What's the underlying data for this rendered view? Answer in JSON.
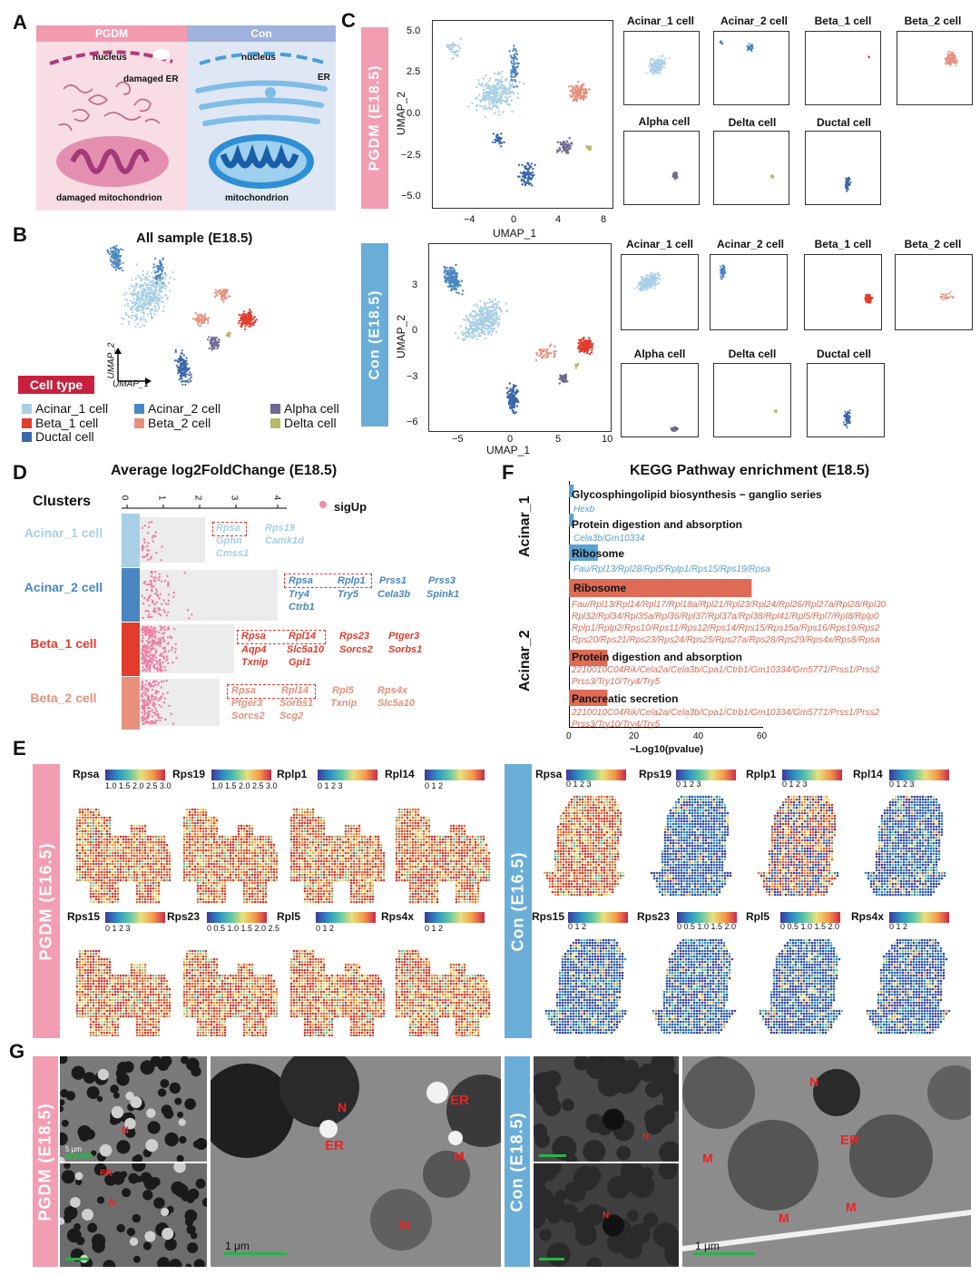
{
  "panels": {
    "A": "A",
    "B": "B",
    "C": "C",
    "D": "D",
    "E": "E",
    "F": "F",
    "G": "G"
  },
  "panelA": {
    "left_header": "PGDM",
    "right_header": "Con",
    "left_nucleus": "nucleus",
    "left_er": "damaged ER",
    "left_mito": "damaged mitochondrion",
    "right_nucleus": "nucleus",
    "right_er": "ER",
    "right_mito": "mitochondrion",
    "colors": {
      "pgdm": "#f4a3b5",
      "con": "#a9bde3"
    }
  },
  "panelB": {
    "title": "All sample (E18.5)",
    "axis_y": "UMAP_2",
    "axis_x": "UMAP_1",
    "legend_title": "Cell type",
    "legend": [
      {
        "label": "Acinar_1 cell",
        "color": "#a8cfe6"
      },
      {
        "label": "Acinar_2 cell",
        "color": "#4a86c1"
      },
      {
        "label": "Alpha cell",
        "color": "#6e6a92"
      },
      {
        "label": "Beta_1 cell",
        "color": "#e23c2c"
      },
      {
        "label": "Beta_2 cell",
        "color": "#e8907c"
      },
      {
        "label": "Delta cell",
        "color": "#b6b96a"
      },
      {
        "label": "Ductal cell",
        "color": "#3a66aa"
      }
    ]
  },
  "panelC": {
    "pgdm_band": "PGDM (E18.5)",
    "con_band": "Con (E18.5)",
    "xlabel": "UMAP_1",
    "ylabel": "UMAP_2",
    "pgdm_xticks": [
      "−4",
      "0",
      "4",
      "8"
    ],
    "pgdm_yticks": [
      "5.0",
      "2.5",
      "0.0",
      "−2.5",
      "−5.0"
    ],
    "con_xticks": [
      "−5",
      "0",
      "5",
      "10"
    ],
    "con_yticks": [
      "3",
      "0",
      "−3",
      "−6"
    ],
    "small_titles_top": [
      "Acinar_1 cell",
      "Acinar_2 cell",
      "Beta_1 cell",
      "Beta_2 cell"
    ],
    "small_titles_bottom": [
      "Alpha cell",
      "Delta cell",
      "Ductal cell"
    ]
  },
  "panelD": {
    "title": "Average log2FoldChange (E18.5)",
    "clusters_label": "Clusters",
    "ticks": [
      "0",
      "1",
      "2",
      "3",
      "4"
    ],
    "legend": "sigUp",
    "clusters": [
      {
        "name": "Acinar_1 cell",
        "color": "#a8cfe6",
        "genes": [
          "Rpsa",
          "Rps19",
          "Gphn",
          "Camk1d",
          "Cmss1"
        ]
      },
      {
        "name": "Acinar_2 cell",
        "color": "#4a86c1",
        "genes": [
          "Rpsa",
          "Rplp1",
          "Prss1",
          "Prss3",
          "Try4",
          "Try5",
          "Cela3b",
          "Spink1",
          "Ctrb1"
        ]
      },
      {
        "name": "Beta_1 cell",
        "color": "#e23c2c",
        "genes": [
          "Rpsa",
          "Rpl14",
          "Rps23",
          "Ptger3",
          "Aqp4",
          "Slc5a10",
          "Sorcs2",
          "Sorbs1",
          "Txnip",
          "Gpi1"
        ]
      },
      {
        "name": "Beta_2 cell",
        "color": "#e8907c",
        "genes": [
          "Rpsa",
          "Rpl14",
          "Rpl5",
          "Rps4x",
          "Ptger3",
          "Sorbs1",
          "Txnip",
          "Slc5a10",
          "Sorcs2",
          "Scg2"
        ]
      }
    ]
  },
  "panelF": {
    "title": "KEGG Pathway enrichment (E18.5)",
    "group1": "Acinar_1",
    "group2": "Acinar_2",
    "xlabel": "−Log10(pvalue)",
    "xticks": [
      "0",
      "20",
      "40",
      "60"
    ],
    "chart_data": {
      "type": "bar",
      "categories": [
        "Glycosphingolipid biosynthesis − ganglio series",
        "Protein digestion and absorption",
        "Ribosome",
        "Ribosome",
        "Protein digestion and absorption",
        "Pancreatic secretion"
      ],
      "values": [
        1.5,
        1.5,
        9,
        57,
        12,
        12
      ],
      "xlabel": "−Log10(pvalue)",
      "xlim": [
        0,
        60
      ]
    },
    "genes": [
      "Hexb",
      "Cela3b/Gm10334",
      "Fau/Rpl13/Rpl28/Rpl5/Rplp1/Rps15/Rps19/Rpsa",
      "Fau/Rpl13/Rpl14/Rpl17/Rpl18a/Rpl21/Rpl23/Rpl24/Rpl26/Rpl27a/Rpl28/Rpl30",
      "Rpl32/Rpl34/Rpl35a/Rpl36/Rpl37/Rpl37a/Rpl38/Rpl41/Rpl5/Rpl7/Rpl8/Rplp0",
      "Rplp1/Rplp2/Rps10/Rps11/Rps12/Rps14/Rps15/Rps15a/Rps16/Rps19/Rps2",
      "Rps20/Rps21/Rps23/Rps24/Rps25/Rps27a/Rps28/Rps29/Rps4x/Rps8/Rpsa",
      "2210010C04Rik/Cela2a/Cela3b/Cpa1/Ctrb1/Gm10334/Gm5771/Prss1/Prss2",
      "Prss3/Try10/Try4/Try5",
      "2210010C04Rik/Cela2a/Cela3b/Cpa1/Ctrb1/Gm10334/Gm5771/Prss1/Prss2",
      "Prss3/Try10/Try4/Try5"
    ],
    "colors": {
      "acinar1": "#5ba0cf",
      "acinar2": "#de6b55"
    }
  },
  "panelE": {
    "pgdm_band": "PGDM (E16.5)",
    "con_band": "Con (E16.5)",
    "pgdm_top": [
      {
        "gene": "Rpsa",
        "ticks": "1.0 1.5 2.0 2.5 3.0"
      },
      {
        "gene": "Rps19",
        "ticks": "1.0 1.5 2.0 2.5 3.0"
      },
      {
        "gene": "Rplp1",
        "ticks": "0  1  2  3"
      },
      {
        "gene": "Rpl14",
        "ticks": "0  1  2"
      }
    ],
    "pgdm_bottom": [
      {
        "gene": "Rps15",
        "ticks": "0  1  2  3"
      },
      {
        "gene": "Rps23",
        "ticks": "0 0.5 1.0 1.5 2.0 2.5"
      },
      {
        "gene": "Rpl5",
        "ticks": "0  1  2"
      },
      {
        "gene": "Rps4x",
        "ticks": "0  1  2"
      }
    ],
    "con_top": [
      {
        "gene": "Rpsa",
        "ticks": "0  1  2  3"
      },
      {
        "gene": "Rps19",
        "ticks": "0  1  2  3"
      },
      {
        "gene": "Rplp1",
        "ticks": "0  1  2  3"
      },
      {
        "gene": "Rpl14",
        "ticks": "0  1  2  3"
      }
    ],
    "con_bottom": [
      {
        "gene": "Rps15",
        "ticks": "0  1  2"
      },
      {
        "gene": "Rps23",
        "ticks": "0 0.5 1.0 1.5 2.0"
      },
      {
        "gene": "Rpl5",
        "ticks": "0 0.5 1.0 1.5 2.0"
      },
      {
        "gene": "Rps4x",
        "ticks": "0  1  2"
      }
    ]
  },
  "panelG": {
    "pgdm_band": "PGDM (E18.5)",
    "con_band": "Con (E18.5)",
    "scale_5um": "5 μm",
    "scale_1um": "1 μm",
    "labels": {
      "N": "N",
      "ER": "ER",
      "M": "M"
    }
  }
}
